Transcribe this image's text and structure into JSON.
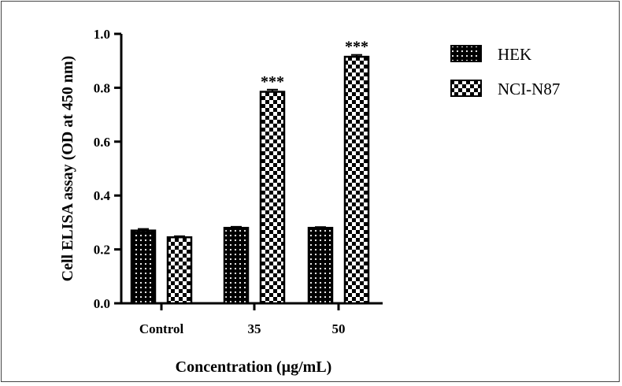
{
  "chart_data": {
    "type": "bar",
    "title": "",
    "xlabel": "Concentration (µg/mL)",
    "ylabel": "Cell ELISA assay (OD at 450 nm)",
    "categories": [
      "Control",
      "35",
      "50"
    ],
    "ylim": [
      0,
      1.0
    ],
    "yticks": [
      "0.0",
      "0.2",
      "0.4",
      "0.6",
      "0.8",
      "1.0"
    ],
    "grid": false,
    "legend_position": "top-right",
    "series": [
      {
        "name": "HEK",
        "values": [
          0.27,
          0.28,
          0.28
        ],
        "errors": [
          0.006,
          0.004,
          0.003
        ],
        "pattern": "dotted",
        "significance": [
          "",
          "",
          ""
        ]
      },
      {
        "name": "NCI-N87",
        "values": [
          0.245,
          0.785,
          0.915
        ],
        "errors": [
          0.004,
          0.008,
          0.007
        ],
        "pattern": "checker",
        "significance": [
          "",
          "***",
          "***"
        ]
      }
    ]
  }
}
